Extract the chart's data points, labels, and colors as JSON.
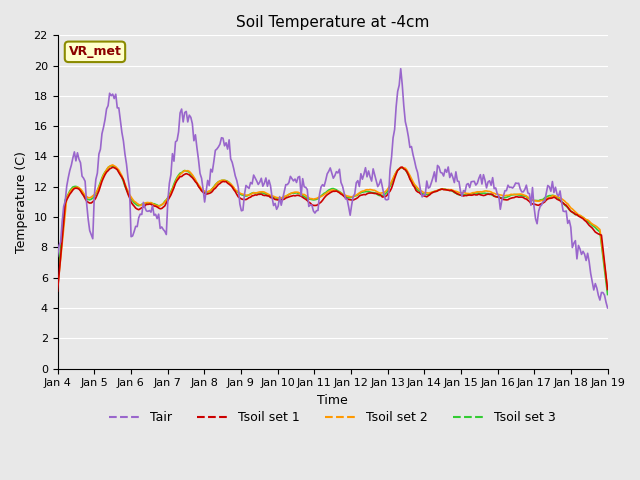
{
  "title": "Soil Temperature at -4cm",
  "xlabel": "Time",
  "ylabel": "Temperature (C)",
  "ylim": [
    0,
    22
  ],
  "yticks": [
    0,
    2,
    4,
    6,
    8,
    10,
    12,
    14,
    16,
    18,
    20,
    22
  ],
  "x_labels": [
    "Jan 4",
    "Jan 5",
    "Jan 6",
    "Jan 7",
    "Jan 8",
    "Jan 9",
    "Jan 10",
    "Jan 11",
    "Jan 12",
    "Jan 13",
    "Jan 14",
    "Jan 15",
    "Jan 16",
    "Jan 17",
    "Jan 18",
    "Jan 19"
  ],
  "annotation_text": "VR_met",
  "annotation_color": "#8B0000",
  "annotation_bg": "#FFFFCC",
  "annotation_border": "#8B8B00",
  "colors": {
    "Tair": "#9966CC",
    "Tsoil1": "#CC0000",
    "Tsoil2": "#FF9900",
    "Tsoil3": "#33CC33"
  },
  "bg_color": "#E8E8E8",
  "grid_color": "#FFFFFF",
  "linewidth": 1.2,
  "legend_labels": [
    "Tair",
    "Tsoil set 1",
    "Tsoil set 2",
    "Tsoil set 3"
  ]
}
